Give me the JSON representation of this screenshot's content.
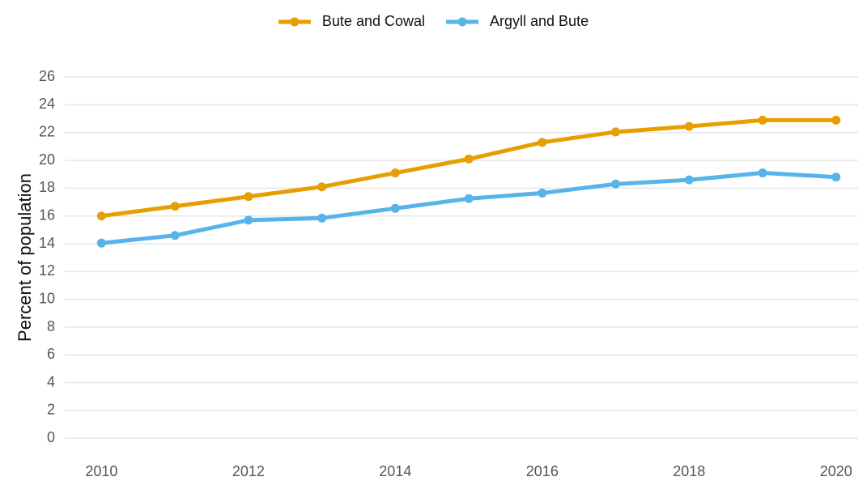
{
  "chart_data": {
    "type": "line",
    "y_label": "Percent of population",
    "x": [
      2010,
      2011,
      2012,
      2013,
      2014,
      2015,
      2016,
      2017,
      2018,
      2019,
      2020
    ],
    "series": [
      {
        "name": "Bute and Cowal",
        "color": "#E69F00",
        "values": [
          16.0,
          16.7,
          17.4,
          18.1,
          19.1,
          20.1,
          21.3,
          22.05,
          22.45,
          22.9,
          22.9
        ]
      },
      {
        "name": "Argyll and Bute",
        "color": "#56B4E9",
        "values": [
          14.05,
          14.6,
          15.7,
          15.85,
          16.55,
          17.25,
          17.65,
          18.3,
          18.6,
          19.1,
          18.8
        ]
      }
    ],
    "xlim": [
      2009.5,
      2020.3
    ],
    "xticks": [
      2010,
      2012,
      2014,
      2016,
      2018,
      2020
    ],
    "ylim": [
      -0.8,
      27
    ],
    "yticks": [
      0,
      2,
      4,
      6,
      8,
      10,
      12,
      14,
      16,
      18,
      20,
      22,
      24,
      26
    ],
    "grid": true,
    "legend": "top"
  }
}
